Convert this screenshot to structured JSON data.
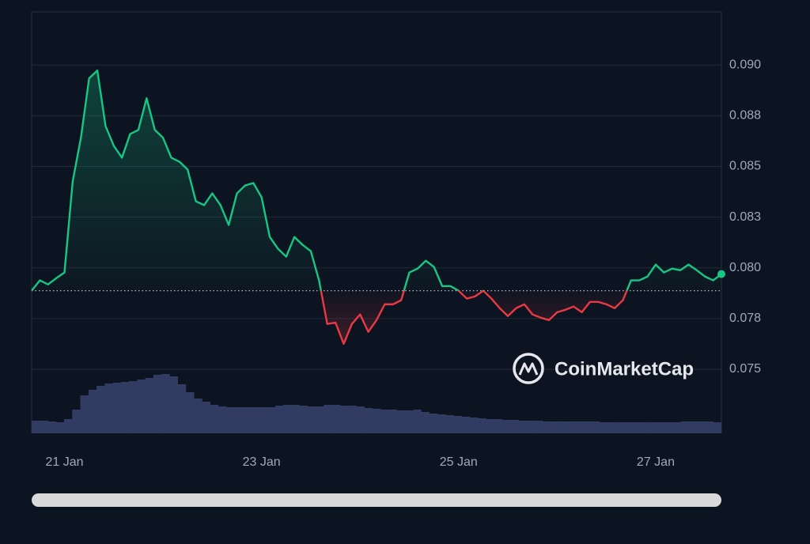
{
  "chart_data": {
    "type": "line",
    "watermark": "CoinMarketCap",
    "categories": [
      null,
      null,
      null,
      null,
      "21 Jan",
      null,
      null,
      null,
      null,
      null,
      null,
      null,
      null,
      null,
      null,
      null,
      null,
      null,
      null,
      null,
      null,
      null,
      null,
      null,
      null,
      null,
      null,
      null,
      "23 Jan",
      null,
      null,
      null,
      null,
      null,
      null,
      null,
      null,
      null,
      null,
      null,
      null,
      null,
      null,
      null,
      null,
      null,
      null,
      null,
      null,
      null,
      null,
      null,
      "25 Jan",
      null,
      null,
      null,
      null,
      null,
      null,
      null,
      null,
      null,
      null,
      null,
      null,
      null,
      null,
      null,
      null,
      null,
      null,
      null,
      null,
      null,
      null,
      null,
      "27 Jan",
      null,
      null,
      null,
      null,
      null,
      null,
      null,
      null
    ],
    "series": [
      {
        "color": "#16c784",
        "down_color": "#ea3943",
        "values": [
          0.07887,
          0.07938,
          0.07918,
          0.07949,
          0.07977,
          0.08426,
          0.08641,
          0.08934,
          0.08973,
          0.08699,
          0.08602,
          0.08543,
          0.0866,
          0.0868,
          0.08836,
          0.0868,
          0.08641,
          0.08543,
          0.08523,
          0.08484,
          0.08328,
          0.08309,
          0.08367,
          0.08309,
          0.08211,
          0.08367,
          0.08406,
          0.08418,
          0.08348,
          0.08152,
          0.08094,
          0.08055,
          0.08152,
          0.08113,
          0.08082,
          0.07938,
          0.07723,
          0.0773,
          0.07625,
          0.07723,
          0.0777,
          0.07684,
          0.07742,
          0.0782,
          0.0782,
          0.0784,
          0.07977,
          0.07996,
          0.08035,
          0.08004,
          0.0791,
          0.0791,
          0.07887,
          0.07848,
          0.07859,
          0.07887,
          0.07848,
          0.07801,
          0.07762,
          0.07801,
          0.0782,
          0.0777,
          0.07754,
          0.07742,
          0.07781,
          0.07793,
          0.07809,
          0.07781,
          0.07832,
          0.07832,
          0.0782,
          0.07801,
          0.0784,
          0.07938,
          0.07938,
          0.07957,
          0.08016,
          0.07977,
          0.07996,
          0.07988,
          0.08016,
          0.07988,
          0.07957,
          0.07938,
          0.07969
        ]
      }
    ],
    "baseline": 0.07887,
    "volume": {
      "color": "#323c63",
      "values": [
        16,
        16,
        15,
        14,
        18,
        30,
        48,
        55,
        60,
        63,
        64,
        65,
        66,
        68,
        70,
        74,
        75,
        72,
        62,
        52,
        44,
        40,
        36,
        34,
        33,
        33,
        33,
        33,
        33,
        33,
        35,
        36,
        36,
        35,
        34,
        34,
        36,
        36,
        35,
        35,
        34,
        32,
        31,
        30,
        30,
        29,
        29,
        30,
        27,
        25,
        24,
        23,
        22,
        21,
        20,
        19,
        18,
        18,
        17,
        17,
        16,
        16,
        16,
        15,
        15,
        15,
        15,
        15,
        15,
        15,
        14,
        14,
        14,
        14,
        14,
        14,
        14,
        14,
        14,
        14,
        15,
        15,
        15,
        15,
        14
      ]
    },
    "vlim": [
      0,
      100
    ],
    "ylim": [
      0.07184,
      0.09262
    ],
    "yticks": [
      {
        "value": 0.075,
        "label": "0.075"
      },
      {
        "value": 0.0775,
        "label": "0.078"
      },
      {
        "value": 0.08,
        "label": "0.080"
      },
      {
        "value": 0.0825,
        "label": "0.083"
      },
      {
        "value": 0.085,
        "label": "0.085"
      },
      {
        "value": 0.0875,
        "label": "0.088"
      },
      {
        "value": 0.09,
        "label": "0.090"
      }
    ],
    "grid": true
  }
}
